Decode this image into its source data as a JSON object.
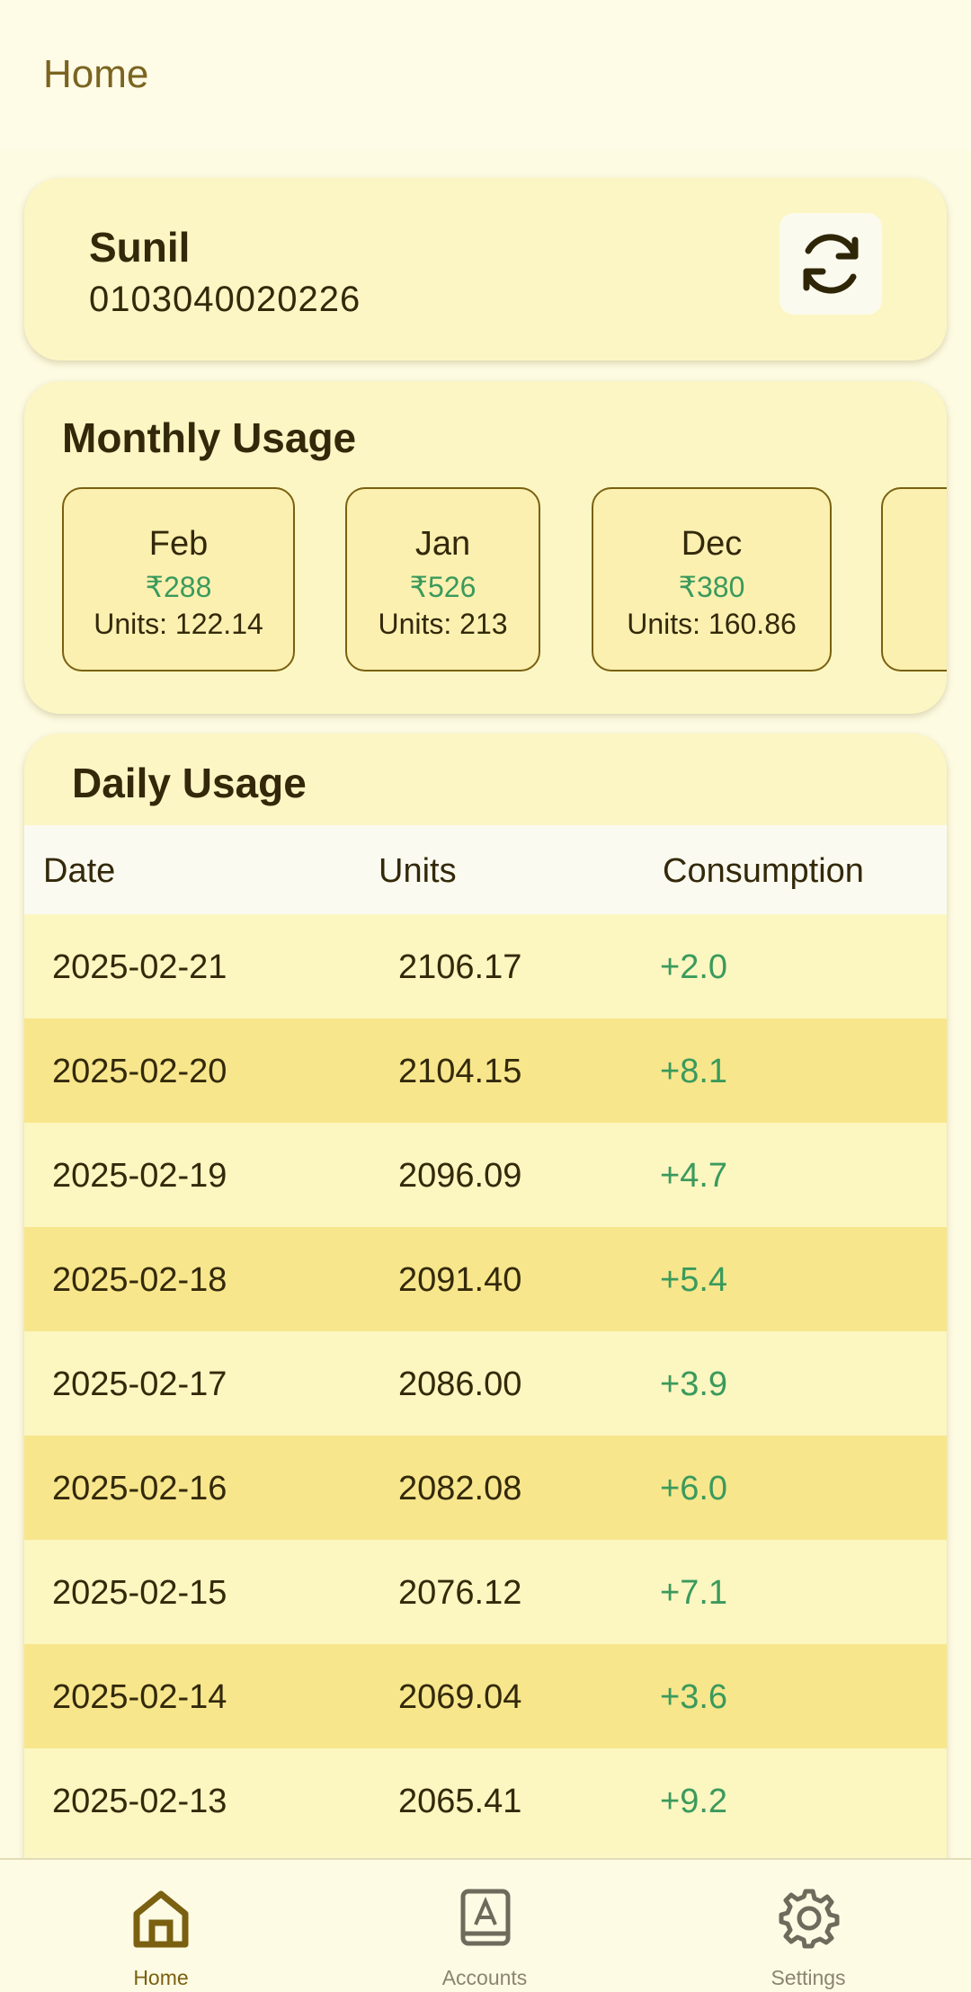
{
  "header": {
    "title": "Home"
  },
  "account": {
    "name": "Sunil",
    "number": "0103040020226"
  },
  "monthly": {
    "title": "Monthly Usage",
    "cards": [
      {
        "month": "Feb",
        "amount": "₹288",
        "units": "Units: 122.14"
      },
      {
        "month": "Jan",
        "amount": "₹526",
        "units": "Units: 213"
      },
      {
        "month": "Dec",
        "amount": "₹380",
        "units": "Units: 160.86"
      }
    ]
  },
  "daily": {
    "title": "Daily Usage",
    "columns": [
      "Date",
      "Units",
      "Consumption"
    ],
    "rows": [
      [
        "2025-02-21",
        "2106.17",
        "+2.0"
      ],
      [
        "2025-02-20",
        "2104.15",
        "+8.1"
      ],
      [
        "2025-02-19",
        "2096.09",
        "+4.7"
      ],
      [
        "2025-02-18",
        "2091.40",
        "+5.4"
      ],
      [
        "2025-02-17",
        "2086.00",
        "+3.9"
      ],
      [
        "2025-02-16",
        "2082.08",
        "+6.0"
      ],
      [
        "2025-02-15",
        "2076.12",
        "+7.1"
      ],
      [
        "2025-02-14",
        "2069.04",
        "+3.6"
      ],
      [
        "2025-02-13",
        "2065.41",
        "+9.2"
      ]
    ]
  },
  "nav": {
    "items": [
      "Home",
      "Accounts",
      "Settings"
    ]
  }
}
